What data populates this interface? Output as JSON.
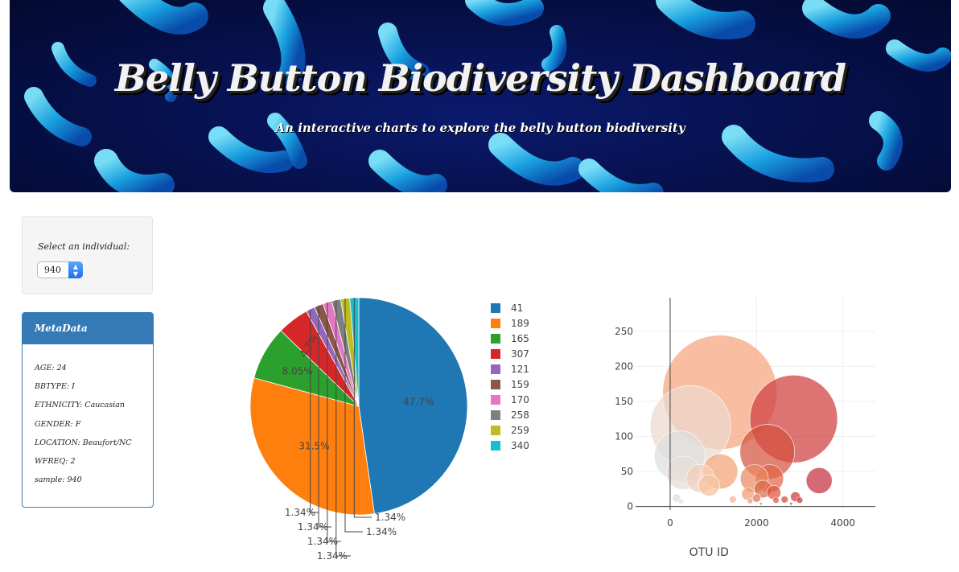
{
  "header": {
    "title": "Belly Button Biodiversity Dashboard",
    "subtitle": "An interactive charts to explore the belly button biodiversity"
  },
  "selector": {
    "label": "Select an individual:",
    "value": "940"
  },
  "metadata": {
    "title": "MetaData",
    "rows": [
      "AGE: 24",
      "BBTYPE: I",
      "ETHNICITY: Caucasian",
      "GENDER: F",
      "LOCATION: Beaufort/NC",
      "WFREQ: 2",
      "sample: 940"
    ]
  },
  "colors": {
    "banner": "#06104a",
    "panel_header": "#337ab7"
  },
  "chart_data": [
    {
      "type": "pie",
      "labels": [
        "41",
        "189",
        "165",
        "307",
        "121",
        "159",
        "170",
        "258",
        "259",
        "340"
      ],
      "values": [
        47.7,
        31.5,
        8.05,
        4.7,
        1.34,
        1.34,
        1.34,
        1.34,
        1.34,
        1.34
      ],
      "slice_labels": [
        "47.7%",
        "31.5%",
        "8.05%",
        "4.7%",
        "1.34%",
        "1.34%",
        "1.34%",
        "1.34%",
        "1.34%",
        "1.34%"
      ],
      "colors": [
        "#1f77b4",
        "#ff7f0e",
        "#2ca02c",
        "#d62728",
        "#9467bd",
        "#8c564b",
        "#e377c2",
        "#7f7f7f",
        "#bcbd22",
        "#17becf"
      ],
      "legend_position": "right"
    },
    {
      "type": "scatter",
      "xlabel": "OTU ID",
      "ylabel": "",
      "xticks": [
        0,
        2000,
        4000
      ],
      "yticks": [
        0,
        50,
        100,
        150,
        200,
        250
      ],
      "xlim": [
        -800,
        4750
      ],
      "ylim": [
        -5,
        298
      ],
      "grid": true,
      "colorscale": "Earth-like (grey to orange to red)",
      "points": [
        {
          "x": 1150,
          "y": 163,
          "size": 163,
          "color": "#f6a57e"
        },
        {
          "x": 470,
          "y": 115,
          "size": 115,
          "color": "#ead9cf"
        },
        {
          "x": 220,
          "y": 72,
          "size": 72,
          "color": "#dedede"
        },
        {
          "x": 2860,
          "y": 125,
          "size": 125,
          "color": "#cf3f3f"
        },
        {
          "x": 2250,
          "y": 78,
          "size": 78,
          "color": "#d4523f"
        },
        {
          "x": 1160,
          "y": 50,
          "size": 50,
          "color": "#f2a377"
        },
        {
          "x": 300,
          "y": 48,
          "size": 48,
          "color": "#e8ddd5"
        },
        {
          "x": 700,
          "y": 40,
          "size": 40,
          "color": "#f2cfb8"
        },
        {
          "x": 900,
          "y": 30,
          "size": 30,
          "color": "#f5c2a0"
        },
        {
          "x": 2300,
          "y": 40,
          "size": 40,
          "color": "#e0674a"
        },
        {
          "x": 1950,
          "y": 40,
          "size": 40,
          "color": "#e98a63"
        },
        {
          "x": 3450,
          "y": 37,
          "size": 37,
          "color": "#c52f3f"
        },
        {
          "x": 2150,
          "y": 25,
          "size": 25,
          "color": "#dc6a4b"
        },
        {
          "x": 2400,
          "y": 20,
          "size": 20,
          "color": "#d9543d"
        },
        {
          "x": 1800,
          "y": 18,
          "size": 18,
          "color": "#ee9c70"
        },
        {
          "x": 2000,
          "y": 12,
          "size": 12,
          "color": "#e47552"
        },
        {
          "x": 2900,
          "y": 14,
          "size": 14,
          "color": "#cc3c3c"
        },
        {
          "x": 2650,
          "y": 10,
          "size": 10,
          "color": "#d64a40"
        },
        {
          "x": 3000,
          "y": 9,
          "size": 9,
          "color": "#c93838"
        },
        {
          "x": 2450,
          "y": 9,
          "size": 9,
          "color": "#d9583f"
        },
        {
          "x": 1850,
          "y": 8,
          "size": 8,
          "color": "#ef9970"
        },
        {
          "x": 150,
          "y": 12,
          "size": 12,
          "color": "#dcdcdc"
        },
        {
          "x": 250,
          "y": 7,
          "size": 7,
          "color": "#e0e0e0"
        },
        {
          "x": 1450,
          "y": 10,
          "size": 10,
          "color": "#f4b08a"
        },
        {
          "x": 2100,
          "y": 4,
          "size": 4,
          "color": "#e06a4c"
        },
        {
          "x": 2800,
          "y": 4,
          "size": 4,
          "color": "#d04040"
        }
      ]
    }
  ]
}
